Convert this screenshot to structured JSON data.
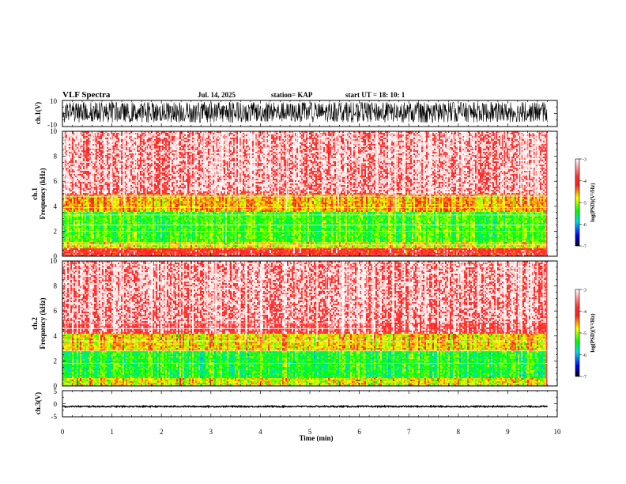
{
  "header": {
    "title": "VLF Spectra",
    "date": "Jul. 14, 2025",
    "station": "station= KAP",
    "start": "start  UT =   18: 10: 1"
  },
  "colorbar": {
    "label": "log(PSD)(V²/Hz)",
    "ticks": [
      "-3",
      "-4",
      "-5",
      "-6",
      "-7"
    ],
    "stops": [
      "#ffffff",
      "#ff3030",
      "#ff2020",
      "#ffff00",
      "#00ff00",
      "#00e0e0",
      "#0000ff",
      "#000000"
    ]
  },
  "chart_data": [
    {
      "type": "line",
      "panel": "ch1-waveform",
      "ylabel": "ch.1(V)",
      "ylim": [
        -10,
        10
      ],
      "ytick_labels": [
        "10",
        "-10"
      ],
      "xlim": [
        0,
        10
      ],
      "description_values": "dense black noise trace roughly between -7 and +9 V",
      "approx_range": [
        -7,
        9
      ]
    },
    {
      "type": "heatmap",
      "panel": "ch1-spectrogram",
      "ylabel": "ch.1\nFrequency (kHz)",
      "ylabel_ch": "ch.1",
      "ylabel_freq": "Frequency (kHz)",
      "ylim": [
        0,
        10
      ],
      "ytick_labels": [
        "10",
        "8",
        "6",
        "4",
        "2",
        "0"
      ],
      "xlim": [
        0,
        9.8
      ],
      "zlim": [
        -7,
        -3
      ],
      "bands": [
        {
          "from": 0.0,
          "to": 0.6,
          "log_psd": -3.6
        },
        {
          "from": 0.6,
          "to": 1.2,
          "log_psd": -4.5
        },
        {
          "from": 1.2,
          "to": 3.5,
          "log_psd": -4.9
        },
        {
          "from": 3.5,
          "to": 5.0,
          "log_psd": -4.2
        },
        {
          "from": 5.0,
          "to": 10.0,
          "log_psd": -3.3
        }
      ],
      "lines_khz": [
        0.9,
        2.0,
        2.5,
        3.3,
        3.9,
        4.8
      ]
    },
    {
      "type": "heatmap",
      "panel": "ch2-spectrogram",
      "ylabel_ch": "ch.2",
      "ylabel_freq": "Frequency (kHz)",
      "ylim": [
        0,
        10
      ],
      "ytick_labels": [
        "10",
        "8",
        "6",
        "4",
        "2",
        "0"
      ],
      "xlim": [
        0,
        9.8
      ],
      "zlim": [
        -7,
        -3
      ],
      "bands": [
        {
          "from": 0.0,
          "to": 0.6,
          "log_psd": -4.4
        },
        {
          "from": 0.6,
          "to": 2.8,
          "log_psd": -5.0
        },
        {
          "from": 2.8,
          "to": 4.2,
          "log_psd": -4.3
        },
        {
          "from": 4.2,
          "to": 10.0,
          "log_psd": -3.3
        }
      ],
      "lines_khz": [
        1.8,
        2.8,
        3.6,
        4.6,
        5.0
      ],
      "line_end_min": 6.4
    },
    {
      "type": "line",
      "panel": "ch3-waveform",
      "ylabel": "ch.3(V)",
      "ylim": [
        -5,
        5
      ],
      "ytick_labels": [
        "5",
        "0",
        "-5"
      ],
      "xlim": [
        0,
        10
      ],
      "approx_range": [
        -1.3,
        -0.8
      ]
    }
  ],
  "xaxis": {
    "label": "Time (min)",
    "ticks": [
      "0",
      "1",
      "2",
      "3",
      "4",
      "5",
      "6",
      "7",
      "8",
      "9",
      "10"
    ]
  }
}
